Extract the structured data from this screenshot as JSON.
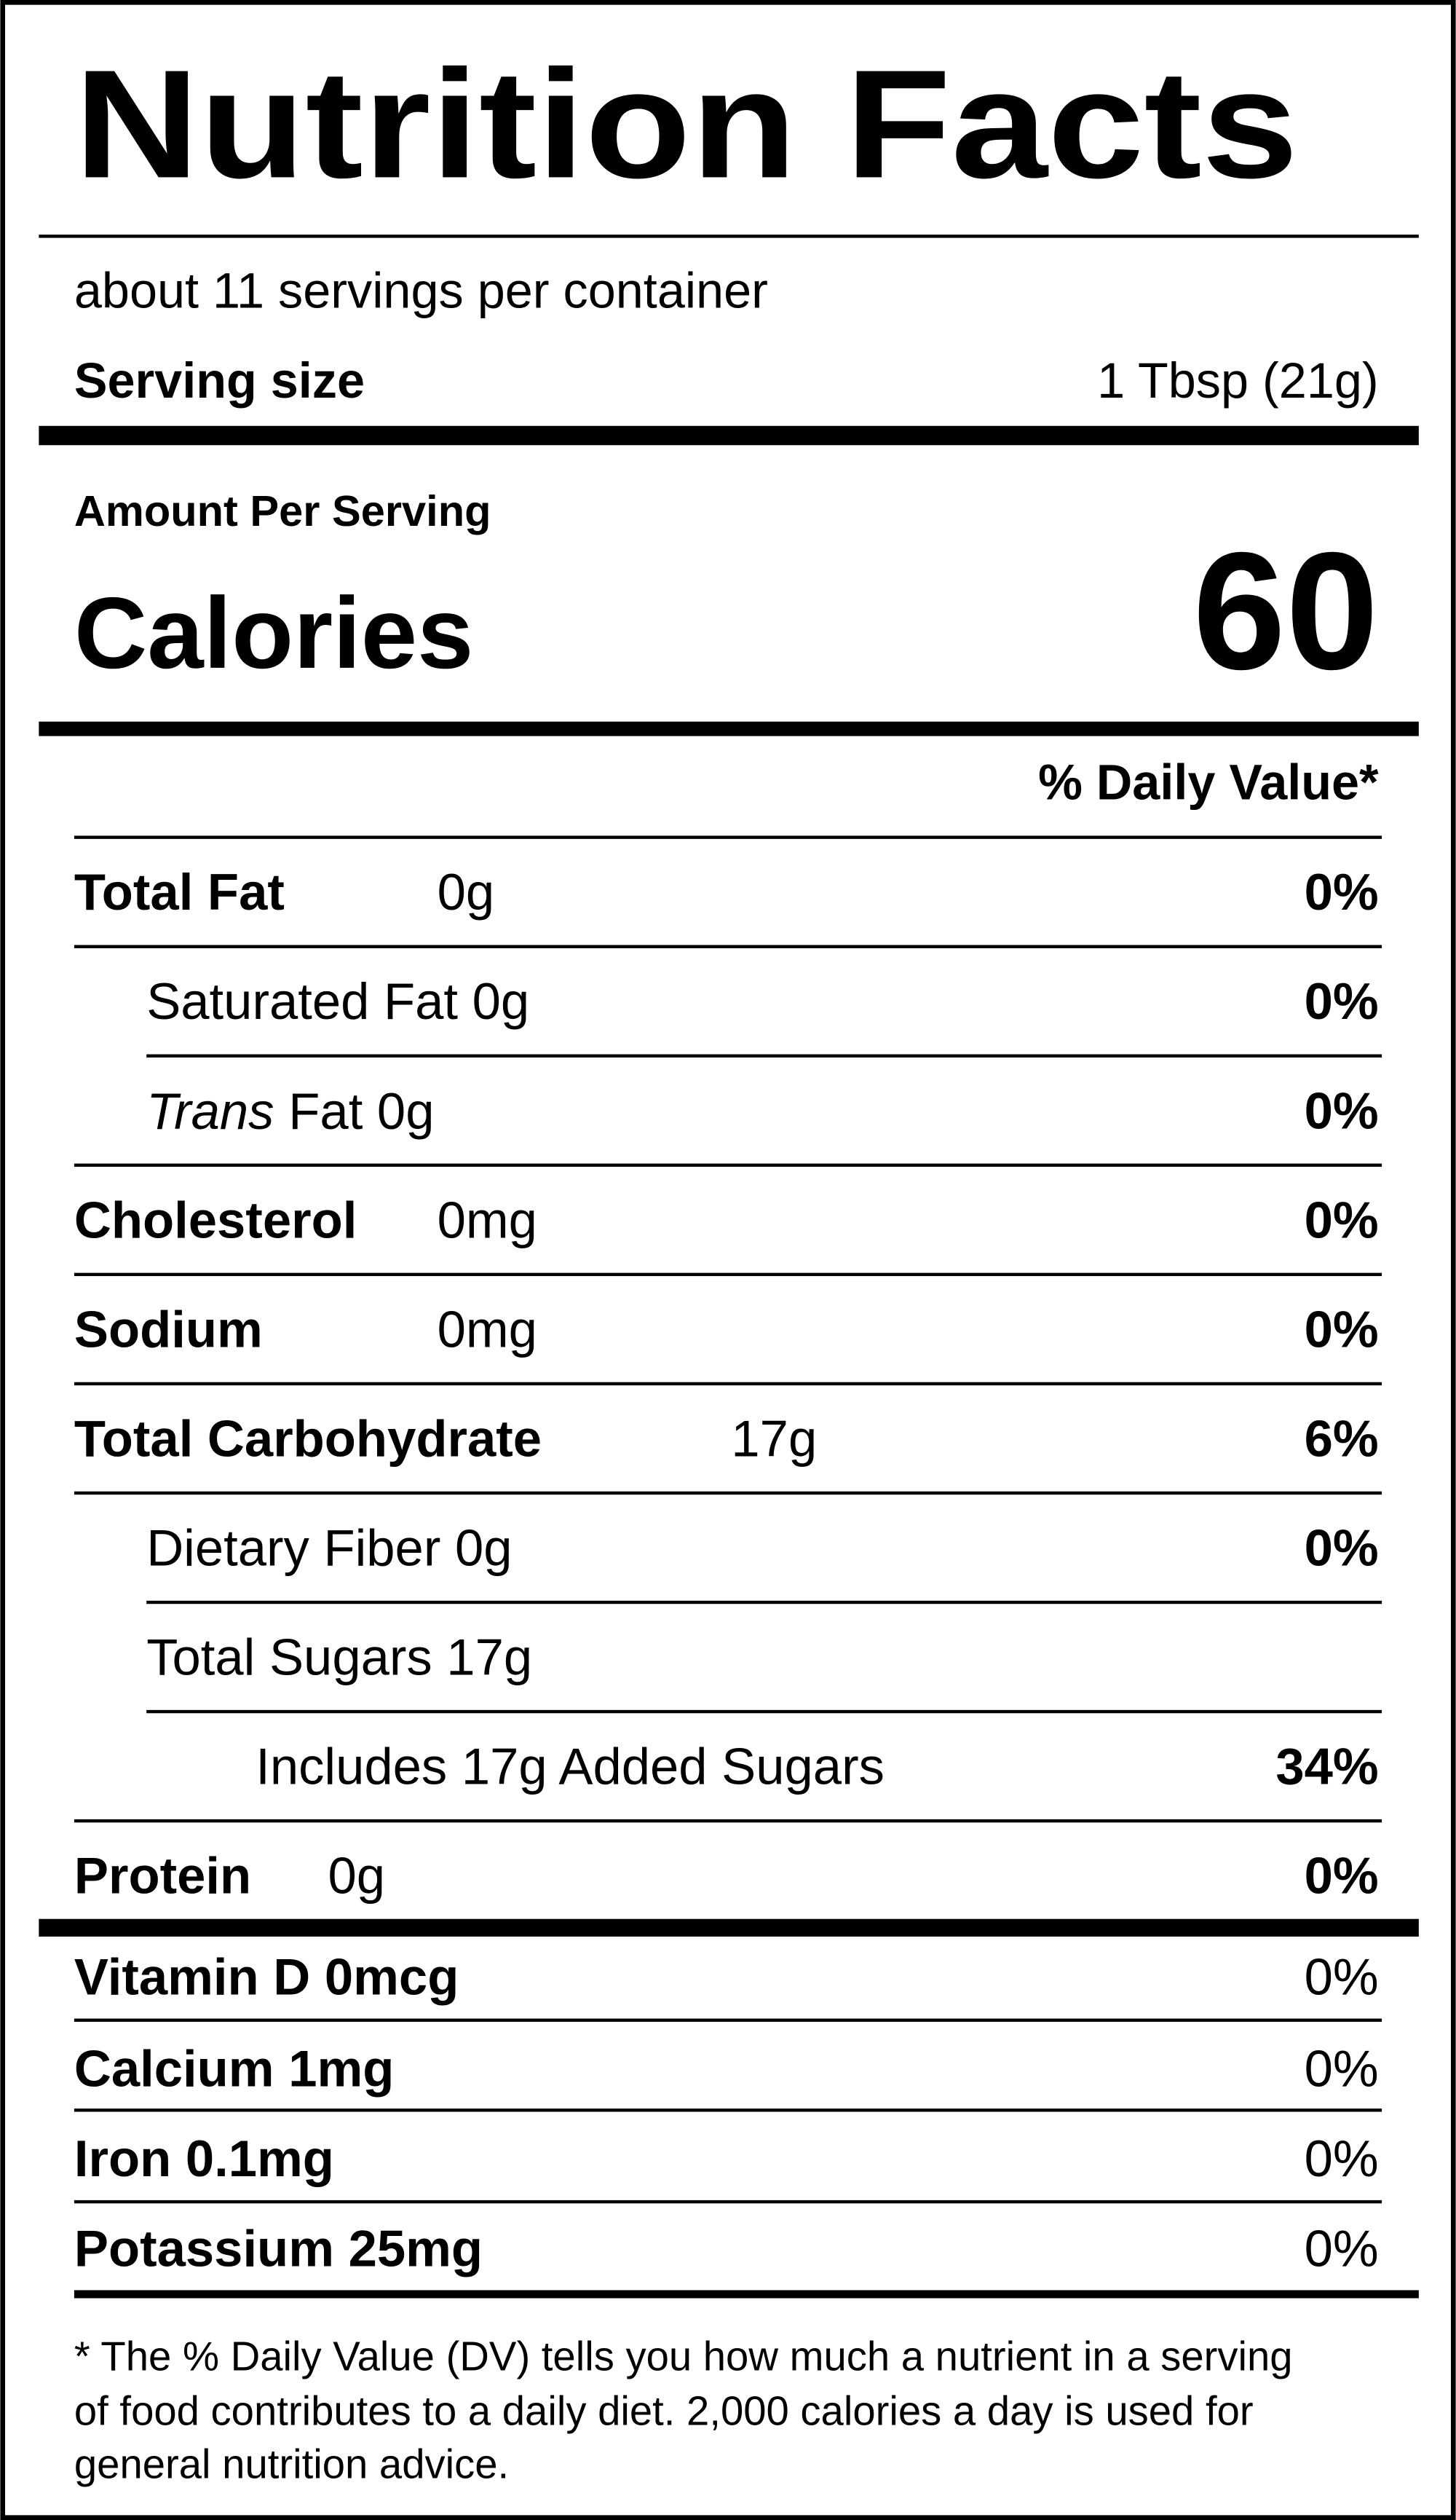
{
  "title": "Nutrition Facts",
  "servings": "about 11 servings per container",
  "serving_size": {
    "label": "Serving size",
    "value": "1 Tbsp (21g)"
  },
  "amount_per_serving": "Amount Per Serving",
  "calories": {
    "label": "Calories",
    "value": "60"
  },
  "dv_header": "% Daily Value*",
  "nutrients": [
    {
      "name": "Total Fat",
      "amount": "0g",
      "dv": "0%"
    },
    {
      "name": "Saturated Fat 0g",
      "dv": "0%"
    },
    {
      "name_italic": "Trans",
      "name": "Fat 0g",
      "dv": "0%"
    },
    {
      "name": "Cholesterol",
      "amount": "0mg",
      "dv": "0%"
    },
    {
      "name": "Sodium",
      "amount": "0mg",
      "dv": "0%"
    },
    {
      "name": "Total Carbohydrate",
      "amount": "17g",
      "dv": "6%"
    },
    {
      "name": "Dietary Fiber 0g",
      "dv": "0%"
    },
    {
      "name": "Total Sugars 17g"
    },
    {
      "name": "Includes 17g Added Sugars",
      "dv": "34%"
    },
    {
      "name": "Protein",
      "amount": "0g",
      "dv": "0%"
    }
  ],
  "vitamins": [
    {
      "name": "Vitamin D 0mcg",
      "dv": "0%"
    },
    {
      "name": "Calcium 1mg",
      "dv": "0%"
    },
    {
      "name": "Iron 0.1mg",
      "dv": "0%"
    },
    {
      "name": "Potassium 25mg",
      "dv": "0%"
    }
  ],
  "footnote": [
    "* The % Daily Value (DV) tells you how much a nutrient in a serving",
    "of food contributes to a daily diet. 2,000 calories a day is used for",
    "general nutrition advice."
  ]
}
